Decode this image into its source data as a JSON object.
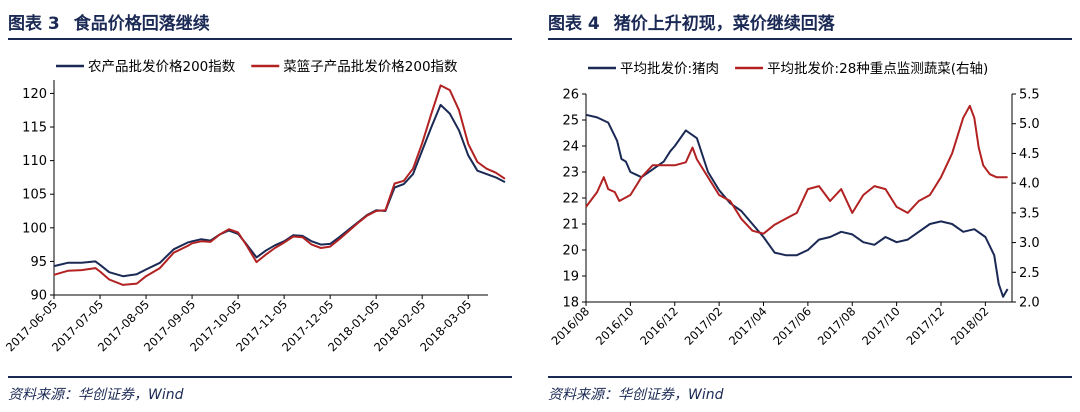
{
  "figures": [
    {
      "title_num": "图表 3",
      "title_text": "食品价格回落继续",
      "source": "资料来源：华创证券，Wind"
    },
    {
      "title_num": "图表 4",
      "title_text": "猪价上升初现，菜价继续回落",
      "source": "资料来源：华创证券，Wind"
    }
  ],
  "colors": {
    "navy": "#1b2a55",
    "red": "#b22222",
    "axis": "#000000"
  },
  "chart_data": [
    {
      "type": "line",
      "title": "",
      "xlabel": "",
      "ylabel": "",
      "x_tick_labels": [
        "2017-06-05",
        "2017-07-05",
        "2017-08-05",
        "2017-09-05",
        "2017-10-05",
        "2017-11-05",
        "2017-12-05",
        "2018-01-05",
        "2018-02-05",
        "2018-03-05"
      ],
      "yticks": [
        90,
        95,
        100,
        105,
        110,
        115,
        120
      ],
      "ylim": [
        90,
        122
      ],
      "legend_position": "top",
      "grid": false,
      "x_unit": "months since 2017-06-05",
      "series": [
        {
          "name": "农产品批发价格200指数",
          "color": "#1b2a55",
          "x": [
            0,
            0.3,
            0.6,
            0.9,
            1.0,
            1.2,
            1.5,
            1.8,
            2.0,
            2.3,
            2.6,
            2.9,
            3.0,
            3.2,
            3.4,
            3.6,
            3.8,
            4.0,
            4.2,
            4.4,
            4.6,
            4.8,
            5.0,
            5.2,
            5.4,
            5.6,
            5.8,
            6.0,
            6.2,
            6.4,
            6.6,
            6.8,
            7.0,
            7.2,
            7.4,
            7.6,
            7.8,
            8.0,
            8.2,
            8.4,
            8.6,
            8.8,
            9.0,
            9.2,
            9.4,
            9.6,
            9.8
          ],
          "y": [
            94.3,
            94.8,
            94.8,
            95.0,
            94.5,
            93.4,
            92.8,
            93.1,
            93.8,
            94.8,
            96.8,
            97.8,
            98.0,
            98.3,
            98.1,
            99.0,
            99.6,
            99.1,
            97.4,
            95.6,
            96.6,
            97.4,
            98.0,
            98.9,
            98.8,
            98.0,
            97.5,
            97.6,
            98.6,
            99.7,
            100.8,
            101.9,
            102.6,
            102.5,
            106.0,
            106.5,
            108.0,
            111.5,
            115.0,
            118.3,
            117.0,
            114.5,
            110.8,
            108.5,
            108.0,
            107.5,
            106.8
          ]
        },
        {
          "name": "菜篮子产品批发价格200指数",
          "color": "#b22222",
          "x": [
            0,
            0.3,
            0.6,
            0.9,
            1.0,
            1.2,
            1.5,
            1.8,
            2.0,
            2.3,
            2.6,
            2.9,
            3.0,
            3.2,
            3.4,
            3.6,
            3.8,
            4.0,
            4.2,
            4.4,
            4.6,
            4.8,
            5.0,
            5.2,
            5.4,
            5.6,
            5.8,
            6.0,
            6.2,
            6.4,
            6.6,
            6.8,
            7.0,
            7.2,
            7.4,
            7.6,
            7.8,
            8.0,
            8.2,
            8.4,
            8.6,
            8.8,
            9.0,
            9.2,
            9.4,
            9.6,
            9.8
          ],
          "y": [
            93.0,
            93.6,
            93.7,
            94.0,
            93.5,
            92.3,
            91.5,
            91.7,
            92.8,
            94.0,
            96.3,
            97.3,
            97.7,
            98.0,
            97.9,
            99.0,
            99.8,
            99.3,
            97.2,
            94.9,
            96.0,
            97.0,
            97.8,
            98.7,
            98.6,
            97.5,
            97.0,
            97.2,
            98.3,
            99.5,
            100.7,
            101.8,
            102.5,
            102.6,
            106.6,
            107.0,
            108.8,
            112.6,
            117.0,
            121.2,
            120.5,
            117.5,
            112.5,
            109.8,
            108.8,
            108.2,
            107.3
          ]
        }
      ]
    },
    {
      "type": "line",
      "title": "",
      "xlabel": "",
      "ylabel": "",
      "ylabel_right": "",
      "x_tick_labels": [
        "2016/08",
        "2016/10",
        "2016/12",
        "2017/02",
        "2017/04",
        "2017/06",
        "2017/08",
        "2017/10",
        "2017/12",
        "2018/02"
      ],
      "yticks": [
        18,
        19,
        20,
        21,
        22,
        23,
        24,
        25,
        26
      ],
      "ylim": [
        18,
        26
      ],
      "yticks_right": [
        "2.0",
        "2.5",
        "3.0",
        "3.5",
        "4.0",
        "4.5",
        "5.0",
        "5.5"
      ],
      "ylim_right": [
        2.0,
        5.5
      ],
      "legend_position": "top",
      "grid": false,
      "x_unit": "months since 2016/08",
      "series": [
        {
          "name": "平均批发价:猪肉",
          "axis": "left",
          "color": "#1b2a55",
          "x": [
            0,
            0.5,
            1.0,
            1.4,
            1.6,
            1.8,
            2.0,
            2.5,
            3.0,
            3.5,
            3.8,
            4.0,
            4.5,
            5.0,
            5.5,
            6.0,
            6.5,
            7.0,
            7.5,
            8.0,
            8.5,
            9.0,
            9.5,
            10.0,
            10.5,
            11.0,
            11.5,
            12.0,
            12.5,
            13.0,
            13.5,
            14.0,
            14.5,
            15.0,
            15.5,
            16.0,
            16.5,
            17.0,
            17.5,
            18.0,
            18.4,
            18.6,
            18.8,
            19.0
          ],
          "y": [
            25.2,
            25.1,
            24.9,
            24.2,
            23.5,
            23.4,
            23.0,
            22.8,
            23.1,
            23.4,
            23.8,
            24.0,
            24.6,
            24.3,
            23.0,
            22.3,
            21.8,
            21.5,
            21.0,
            20.5,
            19.9,
            19.8,
            19.8,
            20.0,
            20.4,
            20.5,
            20.7,
            20.6,
            20.3,
            20.2,
            20.5,
            20.3,
            20.4,
            20.7,
            21.0,
            21.1,
            21.0,
            20.7,
            20.8,
            20.5,
            19.8,
            18.7,
            18.2,
            18.5
          ]
        },
        {
          "name": "平均批发价:28种重点监测蔬菜(右轴)",
          "axis": "right",
          "color": "#b22222",
          "x": [
            0,
            0.5,
            0.8,
            1.0,
            1.3,
            1.5,
            2.0,
            2.5,
            3.0,
            3.5,
            4.0,
            4.5,
            4.8,
            5.0,
            5.5,
            6.0,
            6.5,
            7.0,
            7.5,
            8.0,
            8.5,
            9.0,
            9.5,
            10.0,
            10.5,
            11.0,
            11.5,
            12.0,
            12.5,
            13.0,
            13.5,
            14.0,
            14.5,
            15.0,
            15.5,
            16.0,
            16.5,
            17.0,
            17.3,
            17.5,
            17.7,
            17.9,
            18.2,
            18.5,
            18.8,
            19.0
          ],
          "y": [
            3.6,
            3.85,
            4.1,
            3.9,
            3.85,
            3.7,
            3.8,
            4.1,
            4.3,
            4.3,
            4.3,
            4.35,
            4.6,
            4.4,
            4.1,
            3.8,
            3.7,
            3.4,
            3.2,
            3.15,
            3.3,
            3.4,
            3.5,
            3.9,
            3.95,
            3.7,
            3.9,
            3.5,
            3.8,
            3.95,
            3.9,
            3.6,
            3.5,
            3.7,
            3.8,
            4.1,
            4.5,
            5.1,
            5.3,
            5.1,
            4.6,
            4.3,
            4.15,
            4.1,
            4.1,
            4.1
          ]
        }
      ]
    }
  ]
}
